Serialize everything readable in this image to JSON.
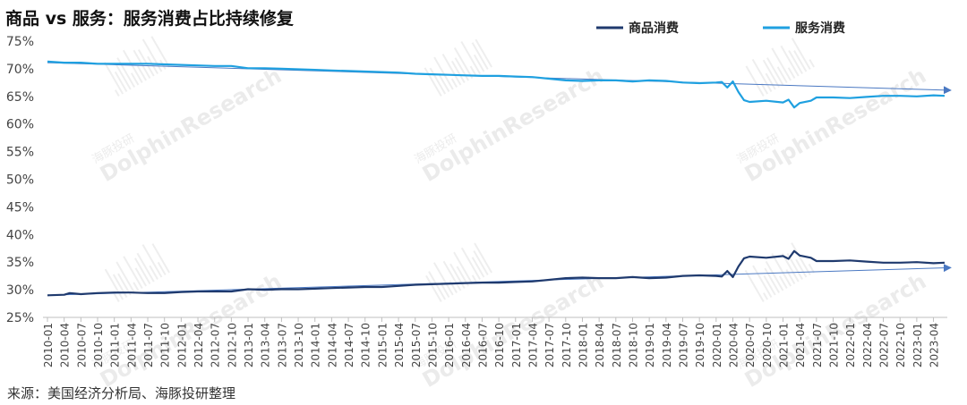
{
  "title": "商品 vs 服务：服务消费占比持续修复",
  "source": "来源：美国经济分析局、海豚投研整理",
  "watermark": [
    "海豚投研",
    "DolphinResearch"
  ],
  "chart_data": {
    "type": "line",
    "ylim": [
      0.25,
      0.75
    ],
    "y_ticks": [
      "25%",
      "30%",
      "35%",
      "40%",
      "45%",
      "50%",
      "55%",
      "60%",
      "65%",
      "70%",
      "75%"
    ],
    "y_tick_values": [
      0.25,
      0.3,
      0.35,
      0.4,
      0.45,
      0.5,
      0.55,
      0.6,
      0.65,
      0.7,
      0.75
    ],
    "x_start": "2010-01",
    "x_end": "2023-06",
    "x_tick_labels": [
      "2010-01",
      "2010-04",
      "2010-07",
      "2010-10",
      "2011-01",
      "2011-04",
      "2011-07",
      "2011-10",
      "2012-01",
      "2012-04",
      "2012-07",
      "2012-10",
      "2013-01",
      "2013-04",
      "2013-07",
      "2013-10",
      "2014-01",
      "2014-04",
      "2014-07",
      "2014-10",
      "2015-01",
      "2015-04",
      "2015-07",
      "2015-10",
      "2016-01",
      "2016-04",
      "2016-07",
      "2016-10",
      "2017-01",
      "2017-04",
      "2017-07",
      "2017-10",
      "2018-01",
      "2018-04",
      "2018-07",
      "2018-10",
      "2019-01",
      "2019-04",
      "2019-07",
      "2019-10",
      "2020-01",
      "2020-04",
      "2020-07",
      "2020-10",
      "2021-01",
      "2021-04",
      "2021-07",
      "2021-10",
      "2022-01",
      "2022-04",
      "2022-07",
      "2022-10",
      "2023-01",
      "2023-04"
    ],
    "legend_position": "top-right",
    "series": [
      {
        "name": "商品消费",
        "color": "#1f3a6e",
        "points": [
          [
            "2010-01",
            0.29
          ],
          [
            "2010-04",
            0.291
          ],
          [
            "2010-05",
            0.294
          ],
          [
            "2010-07",
            0.292
          ],
          [
            "2010-10",
            0.294
          ],
          [
            "2011-01",
            0.295
          ],
          [
            "2011-04",
            0.295
          ],
          [
            "2011-07",
            0.294
          ],
          [
            "2011-10",
            0.294
          ],
          [
            "2012-01",
            0.296
          ],
          [
            "2012-04",
            0.297
          ],
          [
            "2012-07",
            0.297
          ],
          [
            "2012-10",
            0.297
          ],
          [
            "2013-01",
            0.301
          ],
          [
            "2013-04",
            0.3
          ],
          [
            "2013-07",
            0.301
          ],
          [
            "2013-10",
            0.301
          ],
          [
            "2014-01",
            0.302
          ],
          [
            "2014-04",
            0.303
          ],
          [
            "2014-07",
            0.304
          ],
          [
            "2014-10",
            0.305
          ],
          [
            "2015-01",
            0.305
          ],
          [
            "2015-04",
            0.307
          ],
          [
            "2015-07",
            0.309
          ],
          [
            "2015-10",
            0.31
          ],
          [
            "2016-01",
            0.311
          ],
          [
            "2016-04",
            0.312
          ],
          [
            "2016-07",
            0.313
          ],
          [
            "2016-10",
            0.313
          ],
          [
            "2017-01",
            0.314
          ],
          [
            "2017-04",
            0.315
          ],
          [
            "2017-07",
            0.318
          ],
          [
            "2017-10",
            0.321
          ],
          [
            "2018-01",
            0.322
          ],
          [
            "2018-04",
            0.321
          ],
          [
            "2018-07",
            0.321
          ],
          [
            "2018-10",
            0.323
          ],
          [
            "2019-01",
            0.321
          ],
          [
            "2019-04",
            0.322
          ],
          [
            "2019-07",
            0.325
          ],
          [
            "2019-10",
            0.326
          ],
          [
            "2020-01",
            0.325
          ],
          [
            "2020-02",
            0.324
          ],
          [
            "2020-03",
            0.334
          ],
          [
            "2020-04",
            0.323
          ],
          [
            "2020-05",
            0.342
          ],
          [
            "2020-06",
            0.357
          ],
          [
            "2020-07",
            0.36
          ],
          [
            "2020-10",
            0.358
          ],
          [
            "2021-01",
            0.361
          ],
          [
            "2021-02",
            0.356
          ],
          [
            "2021-03",
            0.37
          ],
          [
            "2021-04",
            0.362
          ],
          [
            "2021-06",
            0.358
          ],
          [
            "2021-07",
            0.352
          ],
          [
            "2021-10",
            0.352
          ],
          [
            "2022-01",
            0.353
          ],
          [
            "2022-04",
            0.351
          ],
          [
            "2022-07",
            0.349
          ],
          [
            "2022-10",
            0.349
          ],
          [
            "2023-01",
            0.35
          ],
          [
            "2023-04",
            0.348
          ],
          [
            "2023-06",
            0.349
          ]
        ]
      },
      {
        "name": "服务消费",
        "color": "#1fa0e0",
        "points": [
          [
            "2010-01",
            0.713
          ],
          [
            "2010-04",
            0.711
          ],
          [
            "2010-07",
            0.711
          ],
          [
            "2010-10",
            0.709
          ],
          [
            "2011-01",
            0.709
          ],
          [
            "2011-04",
            0.709
          ],
          [
            "2011-07",
            0.709
          ],
          [
            "2011-10",
            0.708
          ],
          [
            "2012-01",
            0.707
          ],
          [
            "2012-04",
            0.706
          ],
          [
            "2012-07",
            0.705
          ],
          [
            "2012-10",
            0.705
          ],
          [
            "2013-01",
            0.701
          ],
          [
            "2013-04",
            0.701
          ],
          [
            "2013-07",
            0.7
          ],
          [
            "2013-10",
            0.699
          ],
          [
            "2014-01",
            0.698
          ],
          [
            "2014-04",
            0.697
          ],
          [
            "2014-07",
            0.696
          ],
          [
            "2014-10",
            0.695
          ],
          [
            "2015-01",
            0.694
          ],
          [
            "2015-04",
            0.693
          ],
          [
            "2015-07",
            0.691
          ],
          [
            "2015-10",
            0.69
          ],
          [
            "2016-01",
            0.689
          ],
          [
            "2016-04",
            0.688
          ],
          [
            "2016-07",
            0.687
          ],
          [
            "2016-10",
            0.687
          ],
          [
            "2017-01",
            0.686
          ],
          [
            "2017-04",
            0.685
          ],
          [
            "2017-07",
            0.682
          ],
          [
            "2017-10",
            0.679
          ],
          [
            "2018-01",
            0.678
          ],
          [
            "2018-04",
            0.679
          ],
          [
            "2018-07",
            0.679
          ],
          [
            "2018-10",
            0.677
          ],
          [
            "2019-01",
            0.679
          ],
          [
            "2019-04",
            0.678
          ],
          [
            "2019-07",
            0.675
          ],
          [
            "2019-10",
            0.674
          ],
          [
            "2020-01",
            0.675
          ],
          [
            "2020-02",
            0.676
          ],
          [
            "2020-03",
            0.666
          ],
          [
            "2020-04",
            0.677
          ],
          [
            "2020-05",
            0.658
          ],
          [
            "2020-06",
            0.643
          ],
          [
            "2020-07",
            0.64
          ],
          [
            "2020-10",
            0.642
          ],
          [
            "2021-01",
            0.639
          ],
          [
            "2021-02",
            0.644
          ],
          [
            "2021-03",
            0.63
          ],
          [
            "2021-04",
            0.638
          ],
          [
            "2021-06",
            0.642
          ],
          [
            "2021-07",
            0.648
          ],
          [
            "2021-10",
            0.648
          ],
          [
            "2022-01",
            0.647
          ],
          [
            "2022-04",
            0.649
          ],
          [
            "2022-07",
            0.651
          ],
          [
            "2022-10",
            0.651
          ],
          [
            "2023-01",
            0.65
          ],
          [
            "2023-04",
            0.652
          ],
          [
            "2023-06",
            0.651
          ]
        ]
      }
    ],
    "trend_lines": [
      {
        "from": [
          "2010-01",
          0.29
        ],
        "to": [
          "2023-06",
          0.34
        ],
        "color": "#4a78c2"
      },
      {
        "from": [
          "2010-01",
          0.711
        ],
        "to": [
          "2023-06",
          0.661
        ],
        "color": "#4a78c2"
      }
    ]
  }
}
